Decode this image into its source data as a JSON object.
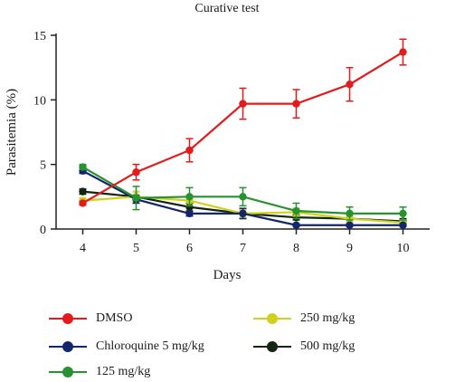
{
  "chart_data": {
    "type": "line",
    "title": "Curative test",
    "xlabel": "Days",
    "ylabel": "Parasitemia (%)",
    "x": [
      4,
      5,
      6,
      7,
      8,
      9,
      10
    ],
    "xlim": [
      3.5,
      10.5
    ],
    "ylim": [
      0,
      15
    ],
    "xticks": [
      "4",
      "5",
      "6",
      "7",
      "8",
      "9",
      "10"
    ],
    "yticks": [
      "0",
      "5",
      "10",
      "15"
    ],
    "grid": false,
    "legend_position": "bottom",
    "series": [
      {
        "name": "DMSO",
        "color": "#e31b1b",
        "values": [
          2.0,
          4.4,
          6.1,
          9.7,
          9.7,
          11.2,
          13.7
        ],
        "errors": [
          0.15,
          0.6,
          0.9,
          1.2,
          1.1,
          1.3,
          1.0
        ]
      },
      {
        "name": "Chloroquine 5 mg/kg",
        "color": "#13256b",
        "values": [
          4.5,
          2.3,
          1.2,
          1.2,
          0.3,
          0.3,
          0.3
        ],
        "errors": [
          0.2,
          0.3,
          0.2,
          0.4,
          0.1,
          0.1,
          0.1
        ]
      },
      {
        "name": "125 mg/kg",
        "color": "#27922f",
        "values": [
          4.8,
          2.4,
          2.5,
          2.5,
          1.4,
          1.2,
          1.2
        ],
        "errors": [
          0.2,
          0.9,
          0.7,
          0.7,
          0.6,
          0.5,
          0.5
        ]
      },
      {
        "name": "250 mg/kg",
        "color": "#cfd11a",
        "values": [
          2.2,
          2.5,
          2.2,
          1.2,
          1.3,
          0.8,
          0.5
        ],
        "errors": [
          0.2,
          0.4,
          0.4,
          0.3,
          0.3,
          0.2,
          0.2
        ]
      },
      {
        "name": "500 mg/kg",
        "color": "#122612",
        "values": [
          2.9,
          2.5,
          1.7,
          1.2,
          0.9,
          0.8,
          0.6
        ],
        "errors": [
          0.2,
          0.4,
          0.3,
          0.3,
          0.2,
          0.2,
          0.2
        ]
      }
    ]
  }
}
